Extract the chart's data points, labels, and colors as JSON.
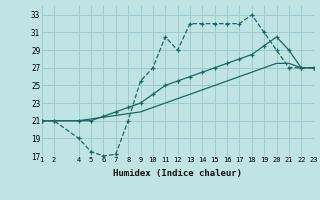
{
  "xlabel": "Humidex (Indice chaleur)",
  "bg_color": "#c0e4e4",
  "grid_color": "#a0cccc",
  "line_color": "#1a6868",
  "xlim": [
    1,
    23
  ],
  "ylim": [
    17,
    34
  ],
  "yticks": [
    17,
    19,
    21,
    23,
    25,
    27,
    29,
    31,
    33
  ],
  "xticks": [
    1,
    2,
    4,
    5,
    6,
    7,
    8,
    9,
    10,
    11,
    12,
    13,
    14,
    15,
    16,
    17,
    18,
    19,
    20,
    21,
    22,
    23
  ],
  "line1_x": [
    1,
    2,
    4,
    5,
    6,
    7,
    8,
    9,
    10,
    11,
    12,
    13,
    14,
    15,
    16,
    17,
    18,
    19,
    20,
    21,
    22,
    23
  ],
  "line1_y": [
    21,
    21,
    19,
    17.5,
    17,
    17.2,
    21,
    25.5,
    27,
    30.5,
    29,
    32,
    32,
    32,
    32,
    32,
    33,
    31,
    29,
    27,
    27,
    27
  ],
  "line2_x": [
    1,
    2,
    4,
    5,
    6,
    7,
    8,
    9,
    10,
    11,
    12,
    13,
    14,
    15,
    16,
    17,
    18,
    19,
    20,
    21,
    22,
    23
  ],
  "line2_y": [
    21,
    21,
    21,
    21,
    21.5,
    22,
    22.5,
    23,
    24,
    25,
    25.5,
    26,
    26.5,
    27,
    27.5,
    28,
    28.5,
    29.5,
    30.5,
    29,
    27,
    27
  ],
  "line3_x": [
    1,
    2,
    4,
    5,
    6,
    7,
    8,
    9,
    10,
    11,
    12,
    13,
    14,
    15,
    16,
    17,
    18,
    19,
    20,
    21,
    22,
    23
  ],
  "line3_y": [
    21,
    21,
    21,
    21.2,
    21.4,
    21.6,
    21.8,
    22,
    22.5,
    23,
    23.5,
    24,
    24.5,
    25,
    25.5,
    26,
    26.5,
    27,
    27.5,
    27.5,
    27,
    27
  ]
}
